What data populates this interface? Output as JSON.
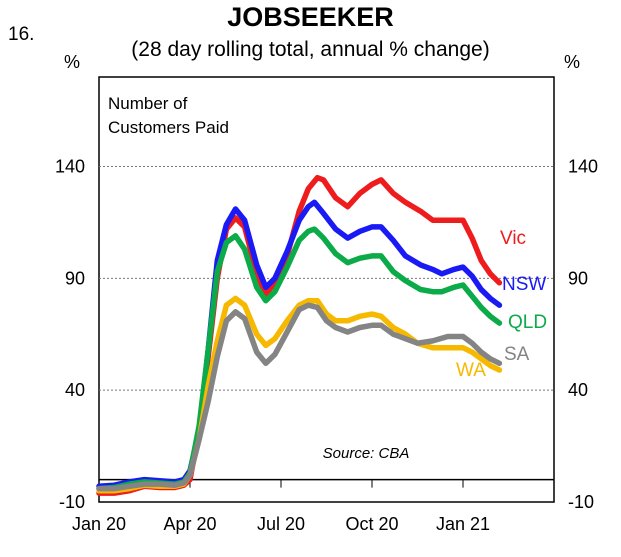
{
  "figure_number": "16.",
  "chart_data": {
    "type": "line",
    "title": "JOBSEEKER",
    "subtitle": "(28 day rolling total, annual % change)",
    "ylabel_left": "%",
    "ylabel_right": "%",
    "panel_label_lines": [
      "Number of",
      "Customers Paid"
    ],
    "source": "Source: CBA",
    "ylim": [
      -10,
      180
    ],
    "yticks": [
      -10,
      40,
      90,
      140
    ],
    "ytick_labels": [
      "-10",
      "40",
      "90",
      "140"
    ],
    "xlim": [
      0,
      15
    ],
    "xticks": [
      0,
      3,
      6,
      9,
      12,
      15
    ],
    "xtick_labels": [
      "Jan 20",
      "Apr 20",
      "Jul 20",
      "Oct 20",
      "Jan 21"
    ],
    "x_label_positions": [
      0,
      3,
      6,
      9,
      12
    ],
    "series": [
      {
        "name": "Vic",
        "color": "#ee1c1c",
        "points": [
          [
            0,
            -6
          ],
          [
            0.5,
            -6
          ],
          [
            1,
            -5
          ],
          [
            1.5,
            -3
          ],
          [
            2,
            -3.5
          ],
          [
            2.5,
            -3.5
          ],
          [
            2.8,
            -2.5
          ],
          [
            3,
            0
          ],
          [
            3.3,
            22
          ],
          [
            3.6,
            55
          ],
          [
            3.9,
            90
          ],
          [
            4.2,
            112
          ],
          [
            4.5,
            117
          ],
          [
            4.8,
            113
          ],
          [
            5.2,
            92
          ],
          [
            5.5,
            83
          ],
          [
            5.8,
            88
          ],
          [
            6.2,
            100
          ],
          [
            6.6,
            120
          ],
          [
            6.9,
            130
          ],
          [
            7.2,
            135
          ],
          [
            7.4,
            134
          ],
          [
            7.8,
            126
          ],
          [
            8.2,
            122
          ],
          [
            8.6,
            128
          ],
          [
            9,
            132
          ],
          [
            9.3,
            134
          ],
          [
            9.7,
            128
          ],
          [
            10.1,
            124
          ],
          [
            10.6,
            120
          ],
          [
            11,
            116
          ],
          [
            11.5,
            116
          ],
          [
            12,
            116
          ],
          [
            12.3,
            108
          ],
          [
            12.6,
            98
          ],
          [
            12.9,
            92
          ],
          [
            13.2,
            88
          ]
        ]
      },
      {
        "name": "NSW",
        "color": "#1a1af5",
        "points": [
          [
            0,
            -3
          ],
          [
            0.5,
            -2.5
          ],
          [
            1,
            -1
          ],
          [
            1.5,
            0
          ],
          [
            2,
            -0.5
          ],
          [
            2.5,
            -1
          ],
          [
            2.8,
            0
          ],
          [
            3,
            4
          ],
          [
            3.3,
            22
          ],
          [
            3.6,
            58
          ],
          [
            3.9,
            98
          ],
          [
            4.2,
            114
          ],
          [
            4.5,
            121
          ],
          [
            4.8,
            116
          ],
          [
            5.2,
            96
          ],
          [
            5.5,
            86
          ],
          [
            5.8,
            90
          ],
          [
            6.2,
            102
          ],
          [
            6.6,
            116
          ],
          [
            6.9,
            122
          ],
          [
            7.1,
            124
          ],
          [
            7.4,
            119
          ],
          [
            7.8,
            112
          ],
          [
            8.2,
            108
          ],
          [
            8.6,
            111
          ],
          [
            9,
            113
          ],
          [
            9.3,
            113
          ],
          [
            9.7,
            107
          ],
          [
            10.1,
            100
          ],
          [
            10.6,
            96
          ],
          [
            11,
            94
          ],
          [
            11.3,
            92
          ],
          [
            11.7,
            94
          ],
          [
            12,
            95
          ],
          [
            12.3,
            91
          ],
          [
            12.6,
            85
          ],
          [
            12.9,
            81
          ],
          [
            13.2,
            78
          ]
        ]
      },
      {
        "name": "QLD",
        "color": "#0aab48",
        "points": [
          [
            0,
            -4
          ],
          [
            0.5,
            -3.5
          ],
          [
            1,
            -2
          ],
          [
            1.5,
            -1
          ],
          [
            2,
            -1.5
          ],
          [
            2.5,
            -2
          ],
          [
            2.8,
            -1
          ],
          [
            3,
            3
          ],
          [
            3.3,
            24
          ],
          [
            3.6,
            58
          ],
          [
            3.9,
            93
          ],
          [
            4.2,
            106
          ],
          [
            4.5,
            109
          ],
          [
            4.8,
            103
          ],
          [
            5.2,
            86
          ],
          [
            5.5,
            80
          ],
          [
            5.8,
            84
          ],
          [
            6.2,
            95
          ],
          [
            6.6,
            107
          ],
          [
            6.9,
            111
          ],
          [
            7.1,
            112
          ],
          [
            7.4,
            108
          ],
          [
            7.8,
            101
          ],
          [
            8.2,
            97
          ],
          [
            8.6,
            99
          ],
          [
            9,
            100
          ],
          [
            9.3,
            100
          ],
          [
            9.7,
            93
          ],
          [
            10.1,
            89
          ],
          [
            10.6,
            85
          ],
          [
            11,
            84
          ],
          [
            11.3,
            84
          ],
          [
            11.7,
            86
          ],
          [
            12,
            87
          ],
          [
            12.3,
            82
          ],
          [
            12.6,
            77
          ],
          [
            12.9,
            73
          ],
          [
            13.2,
            70
          ]
        ]
      },
      {
        "name": "WA",
        "color": "#f7b800",
        "points": [
          [
            0,
            -5
          ],
          [
            0.5,
            -5
          ],
          [
            1,
            -4
          ],
          [
            1.5,
            -2.5
          ],
          [
            2,
            -3
          ],
          [
            2.5,
            -3
          ],
          [
            2.8,
            -2
          ],
          [
            3,
            2
          ],
          [
            3.3,
            18
          ],
          [
            3.6,
            42
          ],
          [
            3.9,
            62
          ],
          [
            4.2,
            78
          ],
          [
            4.5,
            81
          ],
          [
            4.8,
            78
          ],
          [
            5.2,
            65
          ],
          [
            5.5,
            60
          ],
          [
            5.8,
            63
          ],
          [
            6.2,
            71
          ],
          [
            6.6,
            78
          ],
          [
            6.9,
            80
          ],
          [
            7.2,
            80
          ],
          [
            7.5,
            74
          ],
          [
            7.8,
            71
          ],
          [
            8.2,
            71
          ],
          [
            8.6,
            73
          ],
          [
            9,
            74
          ],
          [
            9.3,
            73
          ],
          [
            9.7,
            68
          ],
          [
            10.1,
            65
          ],
          [
            10.5,
            61
          ],
          [
            11,
            59
          ],
          [
            11.5,
            59
          ],
          [
            12,
            59
          ],
          [
            12.3,
            57
          ],
          [
            12.6,
            54
          ],
          [
            12.9,
            51
          ],
          [
            13.2,
            49
          ]
        ]
      },
      {
        "name": "SA",
        "color": "#848484",
        "points": [
          [
            0,
            -4
          ],
          [
            0.5,
            -4
          ],
          [
            1,
            -3
          ],
          [
            1.5,
            -2
          ],
          [
            2,
            -2
          ],
          [
            2.5,
            -2.5
          ],
          [
            2.8,
            -1.5
          ],
          [
            3,
            2
          ],
          [
            3.3,
            18
          ],
          [
            3.6,
            35
          ],
          [
            3.9,
            55
          ],
          [
            4.2,
            71
          ],
          [
            4.5,
            75
          ],
          [
            4.8,
            72
          ],
          [
            5.2,
            57
          ],
          [
            5.5,
            52
          ],
          [
            5.8,
            56
          ],
          [
            6.2,
            66
          ],
          [
            6.6,
            76
          ],
          [
            6.9,
            78
          ],
          [
            7.2,
            77
          ],
          [
            7.5,
            71
          ],
          [
            7.8,
            68
          ],
          [
            8.2,
            66
          ],
          [
            8.6,
            68
          ],
          [
            9,
            69
          ],
          [
            9.3,
            69
          ],
          [
            9.7,
            65
          ],
          [
            10.1,
            63
          ],
          [
            10.5,
            61
          ],
          [
            11,
            62
          ],
          [
            11.5,
            64
          ],
          [
            12,
            64
          ],
          [
            12.3,
            61
          ],
          [
            12.6,
            57
          ],
          [
            12.9,
            54
          ],
          [
            13.2,
            52
          ]
        ]
      }
    ]
  }
}
